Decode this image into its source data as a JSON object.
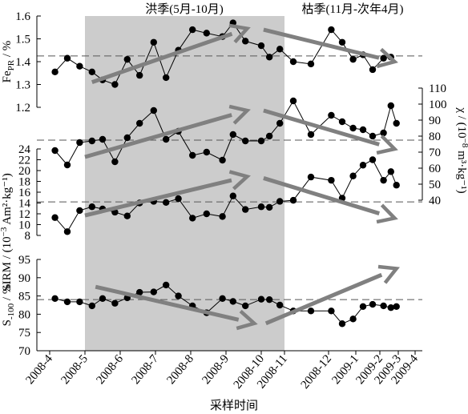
{
  "season_labels": {
    "wet": "洪季(5月-10月)",
    "dry": "枯季(11月-次年4月)"
  },
  "xlabel": "采样时间",
  "month_ticks": [
    "2008-4",
    "2008-5",
    "2008-6",
    "2008-7",
    "2008-8",
    "2008-9",
    "2008-10",
    "2008-11",
    "2008-12",
    "2009-1",
    "2009-2",
    "2009-3",
    "2009-4"
  ],
  "colors": {
    "shade": "#cccccc",
    "arrow": "#808080",
    "point": "#000000",
    "line": "#000000",
    "ref": "#555555"
  },
  "chart_data": [
    {
      "type": "line",
      "name": "FePR",
      "ylabel_main": "Fe",
      "ylabel_sub": "PR",
      "ylabel_rest": " / %",
      "axis_side": "left",
      "ylim": [
        1.2,
        1.6
      ],
      "yticks": [
        "1.2",
        "1.3",
        "1.4",
        "1.5",
        "1.6"
      ],
      "ref_line": 1.425,
      "x": [
        0.15,
        0.5,
        0.85,
        1.2,
        1.5,
        1.85,
        2.2,
        2.55,
        2.95,
        3.3,
        3.65,
        4.05,
        4.45,
        4.9,
        5.2,
        5.55,
        6.0,
        6.35,
        6.8,
        7.2,
        7.6,
        8.1,
        8.5,
        8.9,
        9.3,
        9.7,
        10.2,
        10.6
      ],
      "values": [
        1.355,
        1.415,
        1.38,
        1.355,
        1.32,
        1.3,
        1.41,
        1.34,
        1.485,
        1.33,
        1.45,
        1.54,
        1.525,
        1.51,
        1.57,
        1.49,
        1.47,
        1.42,
        1.455,
        1.4,
        1.39,
        1.54,
        1.485,
        1.41,
        1.43,
        1.365,
        1.415,
        1.42
      ],
      "trends": [
        {
          "x1": 1.2,
          "y1": 1.31,
          "x2": 5.6,
          "y2": 1.545
        },
        {
          "x1": 6.1,
          "y1": 1.54,
          "x2": 10.8,
          "y2": 1.4
        }
      ]
    },
    {
      "type": "line",
      "name": "chi",
      "ylabel_main": "χ / (10",
      "ylabel_rest": "m³·kg⁻¹)",
      "axis_side": "right",
      "ylim": [
        40,
        110
      ],
      "yticks": [
        "40",
        "50",
        "60",
        "70",
        "80",
        "90",
        "100",
        "110"
      ],
      "ref_line": 77.5,
      "x": [
        0.15,
        0.5,
        0.85,
        1.2,
        1.5,
        1.85,
        2.2,
        2.55,
        2.95,
        3.3,
        3.65,
        4.05,
        4.45,
        4.9,
        5.2,
        5.55,
        6.0,
        6.35,
        6.8,
        7.2,
        7.6,
        8.1,
        8.5,
        8.9,
        9.3,
        9.7,
        10.2,
        10.6,
        10.9
      ],
      "values": [
        71,
        62,
        76,
        77,
        78,
        64,
        79,
        88,
        96,
        78,
        83,
        68,
        70,
        65,
        81,
        77,
        77,
        80,
        88,
        102,
        81,
        93,
        89,
        85,
        84,
        80,
        82,
        99,
        88
      ],
      "trends": [
        {
          "x1": 1.0,
          "y1": 67,
          "x2": 5.6,
          "y2": 96
        },
        {
          "x1": 6.1,
          "y1": 96,
          "x2": 10.8,
          "y2": 72
        }
      ]
    },
    {
      "type": "line",
      "name": "SIRM",
      "ylabel_main": "SIRM / (10",
      "ylabel_rest": "Am²·kg⁻¹)",
      "axis_side": "left",
      "ylim": [
        8,
        24
      ],
      "yticks": [
        "8",
        "10",
        "12",
        "14",
        "16",
        "18",
        "20",
        "22",
        "24"
      ],
      "ref_line": 14.2,
      "x": [
        0.15,
        0.5,
        0.85,
        1.2,
        1.5,
        1.85,
        2.2,
        2.55,
        2.95,
        3.3,
        3.65,
        4.05,
        4.45,
        4.9,
        5.2,
        5.55,
        6.0,
        6.35,
        6.8,
        7.2,
        7.6,
        8.1,
        8.5,
        8.9,
        9.3,
        9.7,
        10.2,
        10.6,
        10.9
      ],
      "values": [
        11.3,
        8.7,
        12.6,
        13.3,
        12.9,
        12.3,
        11.6,
        14.0,
        14.3,
        14.1,
        14.8,
        11.2,
        12.0,
        11.5,
        15.3,
        12.8,
        13.3,
        13.2,
        14.3,
        14.5,
        18.8,
        18.2,
        14.9,
        19.0,
        21.0,
        22.0,
        18.2,
        19.8,
        17.3
      ],
      "trends": [
        {
          "x1": 1.0,
          "y1": 11.7,
          "x2": 5.6,
          "y2": 18.9
        },
        {
          "x1": 6.1,
          "y1": 18.6,
          "x2": 10.8,
          "y2": 11.2
        }
      ]
    },
    {
      "type": "line",
      "name": "S100",
      "ylabel_main": "S",
      "ylabel_sub": "-100",
      "ylabel_rest": " / %",
      "axis_side": "left",
      "ylim": [
        70,
        95
      ],
      "yticks": [
        "70",
        "75",
        "80",
        "85",
        "90",
        "95"
      ],
      "ref_line": 84.0,
      "x": [
        0.15,
        0.5,
        0.85,
        1.2,
        1.5,
        1.85,
        2.2,
        2.55,
        2.95,
        3.3,
        3.65,
        4.05,
        4.45,
        4.9,
        5.2,
        5.55,
        6.0,
        6.35,
        6.8,
        7.2,
        7.6,
        8.1,
        8.5,
        8.9,
        9.3,
        9.7,
        10.2,
        10.6,
        10.9
      ],
      "values": [
        84.3,
        83.4,
        83.4,
        82.3,
        84.3,
        83.0,
        84.5,
        86.0,
        86.1,
        88.0,
        85.0,
        82.3,
        80.4,
        84.3,
        83.5,
        82.3,
        84.1,
        84.0,
        82.5,
        80.9,
        80.9,
        80.9,
        77.4,
        78.7,
        82.1,
        82.7,
        82.3,
        81.8,
        82.1
      ],
      "trends": [
        {
          "x1": 1.3,
          "y1": 87.5,
          "x2": 5.8,
          "y2": 77.5
        },
        {
          "x1": 6.2,
          "y1": 77.5,
          "x2": 10.9,
          "y2": 92.5
        }
      ]
    }
  ]
}
